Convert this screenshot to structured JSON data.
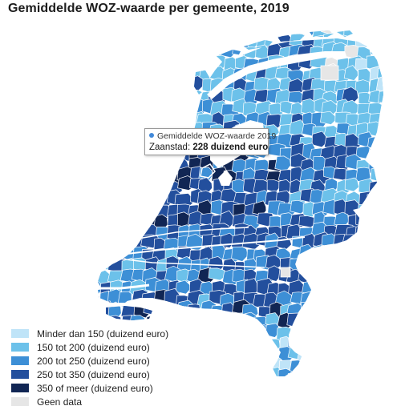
{
  "title": "Gemiddelde WOZ-waarde per gemeente, 2019",
  "tooltip": {
    "series": "Gemiddelde WOZ-waarde 2019",
    "place": "Zaanstad:",
    "value": "228 duizend euro"
  },
  "legend": [
    {
      "label": "Minder dan 150 (duizend euro)",
      "color": "#bfe4f8"
    },
    {
      "label": "150 tot 200 (duizend euro)",
      "color": "#6cc1ea"
    },
    {
      "label": "200 tot 250 (duizend euro)",
      "color": "#3d8fd6"
    },
    {
      "label": "250 tot 350 (duizend euro)",
      "color": "#234f9d"
    },
    {
      "label": "350 of meer (duizend euro)",
      "color": "#112654"
    },
    {
      "label": "Geen data",
      "color": "#e6e6e6"
    }
  ],
  "map_colors": {
    "lt150": "#bfe4f8",
    "c150_200": "#6cc1ea",
    "c200_250": "#3d8fd6",
    "c250_350": "#234f9d",
    "c350plus": "#112654",
    "nodata": "#e6e6e6",
    "border": "#ffffff"
  }
}
